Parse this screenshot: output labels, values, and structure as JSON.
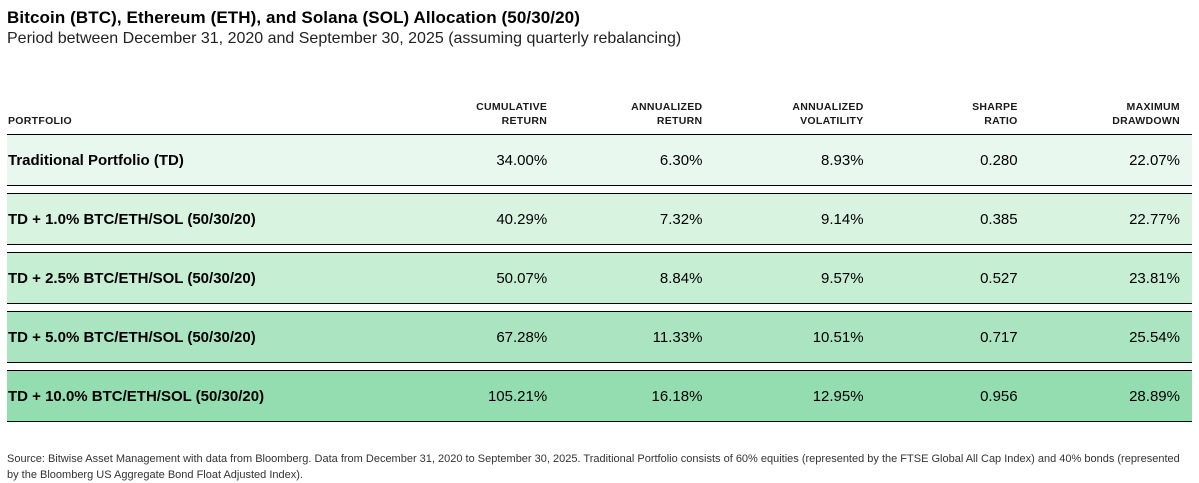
{
  "title": "Bitcoin (BTC), Ethereum (ETH), and Solana (SOL) Allocation (50/30/20)",
  "subtitle": "Period between December 31, 2020 and September 30, 2025 (assuming quarterly rebalancing)",
  "table": {
    "headers": {
      "portfolio": "PORTFOLIO",
      "cumulative_return": "CUMULATIVE\nRETURN",
      "annualized_return": "ANNUALIZED\nRETURN",
      "annualized_volatility": "ANNUALIZED\nVOLATILITY",
      "sharpe_ratio": "SHARPE\nRATIO",
      "maximum_drawdown": "MAXIMUM\nDRAWDOWN"
    },
    "rows": [
      {
        "label": "Traditional Portfolio (TD)",
        "values": [
          "34.00%",
          "6.30%",
          "8.93%",
          "0.280",
          "22.07%"
        ],
        "color": "#e9f8ef"
      },
      {
        "label": "TD + 1.0% BTC/ETH/SOL (50/30/20)",
        "values": [
          "40.29%",
          "7.32%",
          "9.14%",
          "0.385",
          "22.77%"
        ],
        "color": "#d9f3e1"
      },
      {
        "label": "TD + 2.5% BTC/ETH/SOL (50/30/20)",
        "values": [
          "50.07%",
          "8.84%",
          "9.57%",
          "0.527",
          "23.81%"
        ],
        "color": "#c5eed3"
      },
      {
        "label": "TD + 5.0% BTC/ETH/SOL (50/30/20)",
        "values": [
          "67.28%",
          "11.33%",
          "10.51%",
          "0.717",
          "25.54%"
        ],
        "color": "#abe4c0"
      },
      {
        "label": "TD + 10.0% BTC/ETH/SOL (50/30/20)",
        "values": [
          "105.21%",
          "16.18%",
          "12.95%",
          "0.956",
          "28.89%"
        ],
        "color": "#93ddb0"
      }
    ]
  },
  "footer": "Source: Bitwise Asset Management with data from Bloomberg. Data from December 31, 2020 to September 30, 2025. Traditional Portfolio consists of 60% equities (represented by the FTSE Global All Cap Index) and 40% bonds (represented by the Bloomberg US Aggregate Bond Float Adjusted Index).",
  "chart_data": {
    "type": "table",
    "title": "Bitcoin (BTC), Ethereum (ETH), and Solana (SOL) Allocation (50/30/20)",
    "subtitle": "Period between December 31, 2020 and September 30, 2025 (assuming quarterly rebalancing)",
    "columns": [
      "Portfolio",
      "Cumulative Return",
      "Annualized Return",
      "Annualized Volatility",
      "Sharpe Ratio",
      "Maximum Drawdown"
    ],
    "rows": [
      [
        "Traditional Portfolio (TD)",
        34.0,
        6.3,
        8.93,
        0.28,
        22.07
      ],
      [
        "TD + 1.0% BTC/ETH/SOL (50/30/20)",
        40.29,
        7.32,
        9.14,
        0.385,
        22.77
      ],
      [
        "TD + 2.5% BTC/ETH/SOL (50/30/20)",
        50.07,
        8.84,
        9.57,
        0.527,
        23.81
      ],
      [
        "TD + 5.0% BTC/ETH/SOL (50/30/20)",
        67.28,
        11.33,
        10.51,
        0.717,
        25.54
      ],
      [
        "TD + 10.0% BTC/ETH/SOL (50/30/20)",
        105.21,
        16.18,
        12.95,
        0.956,
        28.89
      ]
    ],
    "units": {
      "percent_columns": [
        "Cumulative Return",
        "Annualized Return",
        "Annualized Volatility",
        "Maximum Drawdown"
      ]
    }
  }
}
